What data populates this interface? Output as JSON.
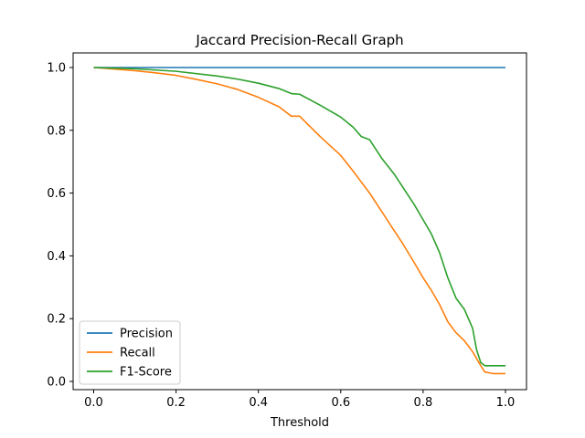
{
  "chart_data": {
    "type": "line",
    "title": "Jaccard Precision-Recall Graph",
    "xlabel": "Threshold",
    "ylabel": "",
    "xlim": [
      0.0,
      1.0
    ],
    "ylim": [
      0.0,
      1.0
    ],
    "x_ticks": [
      "0.0",
      "0.2",
      "0.4",
      "0.6",
      "0.8",
      "1.0"
    ],
    "y_ticks": [
      "0.0",
      "0.2",
      "0.4",
      "0.6",
      "0.8",
      "1.0"
    ],
    "grid": false,
    "legend_position": "bottom-left",
    "series": [
      {
        "name": "Precision",
        "color": "#1f77b4",
        "points": [
          [
            0.0,
            1.0
          ],
          [
            1.0,
            1.0
          ]
        ]
      },
      {
        "name": "Recall",
        "color": "#ff7f0e",
        "points": [
          [
            0.0,
            1.0
          ],
          [
            0.05,
            0.995
          ],
          [
            0.1,
            0.99
          ],
          [
            0.15,
            0.983
          ],
          [
            0.2,
            0.975
          ],
          [
            0.25,
            0.962
          ],
          [
            0.3,
            0.948
          ],
          [
            0.35,
            0.93
          ],
          [
            0.4,
            0.905
          ],
          [
            0.45,
            0.875
          ],
          [
            0.48,
            0.845
          ],
          [
            0.5,
            0.845
          ],
          [
            0.55,
            0.78
          ],
          [
            0.6,
            0.72
          ],
          [
            0.63,
            0.67
          ],
          [
            0.65,
            0.635
          ],
          [
            0.67,
            0.6
          ],
          [
            0.7,
            0.54
          ],
          [
            0.73,
            0.48
          ],
          [
            0.75,
            0.44
          ],
          [
            0.78,
            0.375
          ],
          [
            0.8,
            0.33
          ],
          [
            0.82,
            0.29
          ],
          [
            0.84,
            0.245
          ],
          [
            0.86,
            0.19
          ],
          [
            0.88,
            0.155
          ],
          [
            0.9,
            0.13
          ],
          [
            0.92,
            0.095
          ],
          [
            0.94,
            0.05
          ],
          [
            0.95,
            0.03
          ],
          [
            0.97,
            0.025
          ],
          [
            1.0,
            0.025
          ]
        ]
      },
      {
        "name": "F1-Score",
        "color": "#2ca02c",
        "points": [
          [
            0.0,
            1.0
          ],
          [
            0.1,
            0.996
          ],
          [
            0.2,
            0.988
          ],
          [
            0.3,
            0.973
          ],
          [
            0.35,
            0.963
          ],
          [
            0.4,
            0.95
          ],
          [
            0.45,
            0.933
          ],
          [
            0.48,
            0.917
          ],
          [
            0.5,
            0.915
          ],
          [
            0.55,
            0.88
          ],
          [
            0.6,
            0.842
          ],
          [
            0.63,
            0.81
          ],
          [
            0.65,
            0.78
          ],
          [
            0.67,
            0.77
          ],
          [
            0.7,
            0.71
          ],
          [
            0.73,
            0.66
          ],
          [
            0.75,
            0.62
          ],
          [
            0.78,
            0.56
          ],
          [
            0.8,
            0.515
          ],
          [
            0.82,
            0.47
          ],
          [
            0.84,
            0.41
          ],
          [
            0.86,
            0.33
          ],
          [
            0.88,
            0.265
          ],
          [
            0.9,
            0.23
          ],
          [
            0.92,
            0.17
          ],
          [
            0.93,
            0.1
          ],
          [
            0.94,
            0.06
          ],
          [
            0.95,
            0.05
          ],
          [
            1.0,
            0.05
          ]
        ]
      }
    ]
  }
}
